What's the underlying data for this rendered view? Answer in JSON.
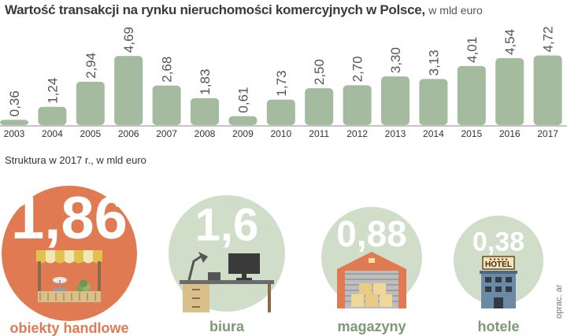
{
  "title": "Wartość transakcji na rynku nieruchomości komercyjnych w Polsce,",
  "title_unit": "w mld euro",
  "subtitle": "Struktura w 2017 r., w mld euro",
  "credit": "oprac. ar",
  "colors": {
    "bar": "#a4bb9f",
    "axis": "#888888",
    "circle_green": "#cfddc9",
    "circle_orange": "#e07a52",
    "label_green": "#7b9a73",
    "label_orange": "#e07a52"
  },
  "chart_data": {
    "type": "bar",
    "categories": [
      "2003",
      "2004",
      "2005",
      "2006",
      "2007",
      "2008",
      "2009",
      "2010",
      "2011",
      "2012",
      "2013",
      "2014",
      "2015",
      "2016",
      "2017"
    ],
    "values": [
      0.36,
      1.24,
      2.94,
      4.69,
      2.68,
      1.83,
      0.61,
      1.73,
      2.5,
      2.7,
      3.3,
      3.13,
      4.01,
      4.54,
      4.72
    ],
    "value_labels": [
      "0,36",
      "1,24",
      "2,94",
      "4,69",
      "2,68",
      "1,83",
      "0,61",
      "1,73",
      "2,50",
      "2,70",
      "3,30",
      "3,13",
      "4,01",
      "4,54",
      "4,72"
    ],
    "ylim": [
      0,
      4.8
    ]
  },
  "structure": [
    {
      "value": 1.86,
      "value_label": "1,86",
      "label": "obiekty handlowe",
      "icon": "market-stall-icon",
      "color": "orange"
    },
    {
      "value": 1.6,
      "value_label": "1,6",
      "label": "biura",
      "icon": "office-desk-icon",
      "color": "green"
    },
    {
      "value": 0.88,
      "value_label": "0,88",
      "label": "magazyny",
      "icon": "warehouse-icon",
      "color": "green"
    },
    {
      "value": 0.38,
      "value_label": "0,38",
      "label": "hotele",
      "icon": "hotel-icon",
      "color": "green",
      "sign": "HOTEL"
    }
  ]
}
